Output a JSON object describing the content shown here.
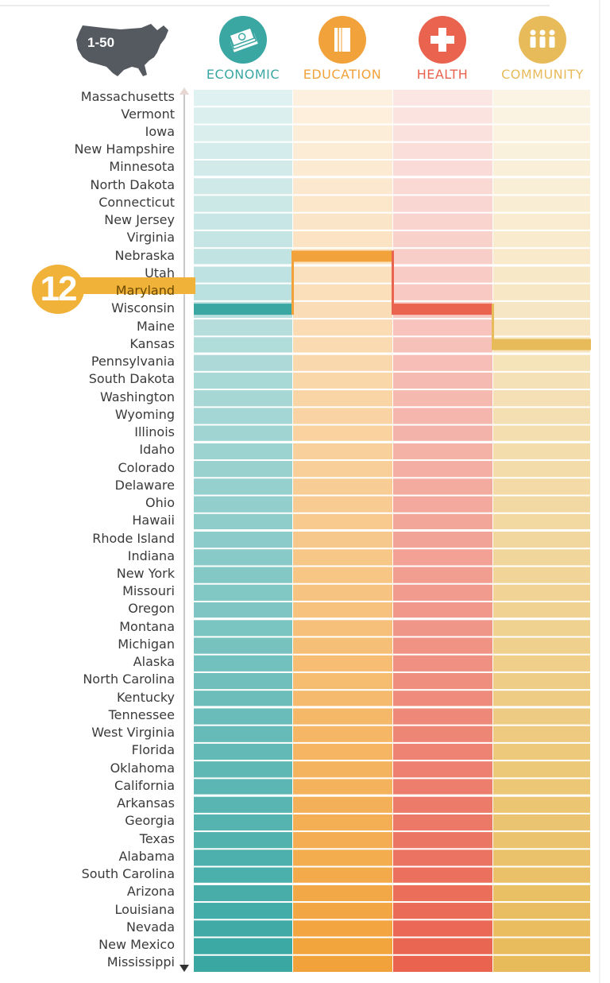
{
  "header": {
    "map_label": "1-50",
    "categories": [
      {
        "key": "economic",
        "label": "ECONOMIC",
        "icon": "money-icon",
        "color": "#3aa7a3"
      },
      {
        "key": "education",
        "label": "EDUCATION",
        "icon": "books-icon",
        "color": "#f2a23a"
      },
      {
        "key": "health",
        "label": "HEALTH",
        "icon": "medical-cross-icon",
        "color": "#e9634f"
      },
      {
        "key": "community",
        "label": "COMMUNITY",
        "icon": "people-icon",
        "color": "#e8bb5a"
      }
    ]
  },
  "highlight": {
    "state": "Maryland",
    "rank": "12"
  },
  "chart_data": {
    "type": "heatmap",
    "ranking_axis": "1-50",
    "states": [
      "Massachusetts",
      "Vermont",
      "Iowa",
      "New Hampshire",
      "Minnesota",
      "North Dakota",
      "Connecticut",
      "New Jersey",
      "Virginia",
      "Nebraska",
      "Utah",
      "Maryland",
      "Wisconsin",
      "Maine",
      "Kansas",
      "Pennsylvania",
      "South Dakota",
      "Washington",
      "Wyoming",
      "Illinois",
      "Idaho",
      "Colorado",
      "Delaware",
      "Ohio",
      "Hawaii",
      "Rhode Island",
      "Indiana",
      "New York",
      "Missouri",
      "Oregon",
      "Montana",
      "Michigan",
      "Alaska",
      "North Carolina",
      "Kentucky",
      "Tennessee",
      "West Virginia",
      "Florida",
      "Oklahoma",
      "California",
      "Arkansas",
      "Georgia",
      "Texas",
      "Alabama",
      "South Carolina",
      "Arizona",
      "Louisiana",
      "Nevada",
      "New Mexico",
      "Mississippi"
    ],
    "series": [
      {
        "name": "ECONOMIC",
        "highlight_rank": 13
      },
      {
        "name": "EDUCATION",
        "highlight_rank": 10
      },
      {
        "name": "HEALTH",
        "highlight_rank": 13
      },
      {
        "name": "COMMUNITY",
        "highlight_rank": 15
      }
    ],
    "grid": true
  }
}
